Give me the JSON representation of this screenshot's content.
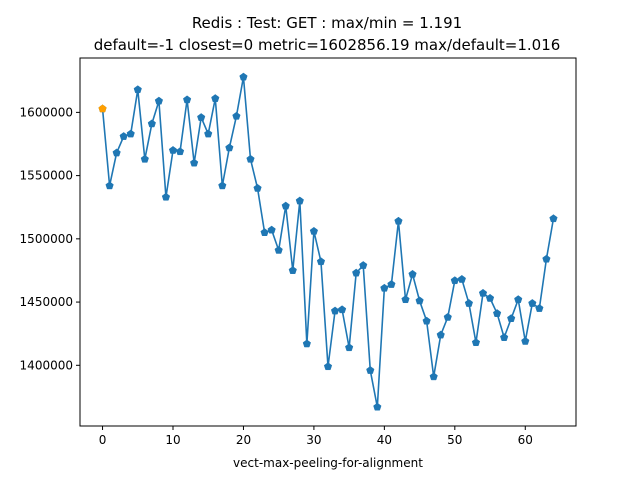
{
  "chart_data": {
    "type": "line",
    "title_line1": "Redis : Test: GET : max/min = 1.191",
    "title_line2": "default=-1 closest=0 metric=1602856.19 max/default=1.016",
    "xlabel": "vect-max-peeling-for-alignment",
    "ylabel": "",
    "xlim": [
      -3.2,
      67.2
    ],
    "ylim": [
      1352000,
      1643000
    ],
    "xticks": [
      0,
      10,
      20,
      30,
      40,
      50,
      60
    ],
    "yticks": [
      1400000,
      1450000,
      1500000,
      1550000,
      1600000
    ],
    "grid": false,
    "series": [
      {
        "color": "#1f77b4",
        "marker": "pentagon",
        "x": [
          0,
          1,
          2,
          3,
          4,
          5,
          6,
          7,
          8,
          9,
          10,
          11,
          12,
          13,
          14,
          15,
          16,
          17,
          18,
          19,
          20,
          21,
          22,
          23,
          24,
          25,
          26,
          27,
          28,
          29,
          30,
          31,
          32,
          33,
          34,
          35,
          36,
          37,
          38,
          39,
          40,
          41,
          42,
          43,
          44,
          45,
          46,
          47,
          48,
          49,
          50,
          51,
          52,
          53,
          54,
          55,
          56,
          57,
          58,
          59,
          60,
          61,
          62,
          63,
          64
        ],
        "y": [
          1602856,
          1542000,
          1568000,
          1581000,
          1583000,
          1618000,
          1563000,
          1591000,
          1609000,
          1533000,
          1570000,
          1569000,
          1610000,
          1560000,
          1596000,
          1583000,
          1611000,
          1542000,
          1572000,
          1597000,
          1628000,
          1563000,
          1540000,
          1505000,
          1507000,
          1491000,
          1526000,
          1475000,
          1530000,
          1417000,
          1506000,
          1482000,
          1399000,
          1443000,
          1444000,
          1414000,
          1473000,
          1479000,
          1396000,
          1367000,
          1461000,
          1464000,
          1514000,
          1452000,
          1472000,
          1451000,
          1435000,
          1391000,
          1424000,
          1438000,
          1467000,
          1468000,
          1449000,
          1418000,
          1457000,
          1453000,
          1441000,
          1422000,
          1437000,
          1452000,
          1419000,
          1449000,
          1445000,
          1484000,
          1516000
        ]
      }
    ],
    "highlight": {
      "x": 0,
      "y": 1602856,
      "color": "#ff9f00"
    }
  }
}
